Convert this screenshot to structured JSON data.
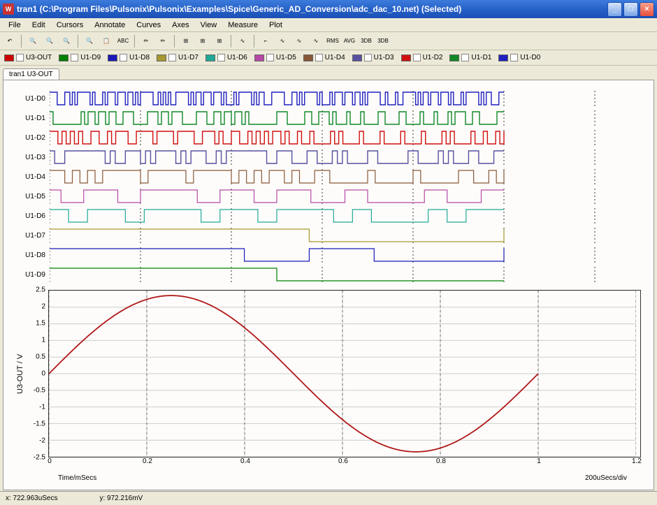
{
  "window": {
    "title": "tran1 (C:\\Program Files\\Pulsonix\\Pulsonix\\Examples\\Spice\\Generic_AD_Conversion\\adc_dac_10.net) (Selected)",
    "icon_glyph": "W"
  },
  "menu": [
    "File",
    "Edit",
    "Cursors",
    "Annotate",
    "Curves",
    "Axes",
    "View",
    "Measure",
    "Plot"
  ],
  "toolbar_icons": [
    "↶",
    "|",
    "🔍",
    "🔍",
    "🔍",
    "|",
    "🔍",
    "📋",
    "ABC",
    "|",
    "✏",
    "✏",
    "|",
    "⊞",
    "⊞",
    "⊞",
    "|",
    "∿",
    "|",
    "⌐",
    "∿",
    "∿",
    "∿",
    "RMS",
    "AVG",
    "3DB",
    "3DB"
  ],
  "legend": [
    {
      "label": "U3-OUT",
      "color": "#cc0000"
    },
    {
      "label": "U1-D9",
      "color": "#008000"
    },
    {
      "label": "U1-D8",
      "color": "#1a18b9"
    },
    {
      "label": "U1-D7",
      "color": "#a89830"
    },
    {
      "label": "U1-D6",
      "color": "#20a898"
    },
    {
      "label": "U1-D5",
      "color": "#b848a8"
    },
    {
      "label": "U1-D4",
      "color": "#885838"
    },
    {
      "label": "U1-D3",
      "color": "#5850a0"
    },
    {
      "label": "U1-D2",
      "color": "#d01010"
    },
    {
      "label": "U1-D1",
      "color": "#108828"
    },
    {
      "label": "U1-D0",
      "color": "#2020c0"
    }
  ],
  "tab": "tran1 U3-OUT",
  "digital_signals": [
    {
      "name": "U1-D0",
      "color": "#2020c0",
      "density": 180
    },
    {
      "name": "U1-D1",
      "color": "#108828",
      "density": 130
    },
    {
      "name": "U1-D2",
      "color": "#d01010",
      "density": 110
    },
    {
      "name": "U1-D3",
      "color": "#5850a0",
      "density": 90
    },
    {
      "name": "U1-D4",
      "color": "#885838",
      "density": 60
    },
    {
      "name": "U1-D5",
      "color": "#b848a8",
      "density": 40
    },
    {
      "name": "U1-D6",
      "color": "#20a898",
      "density": 24
    },
    {
      "name": "U1-D7",
      "color": "#a89830",
      "density": 14
    },
    {
      "name": "U1-D8",
      "color": "#1a18b9",
      "density": 7
    },
    {
      "name": "U1-D9",
      "color": "#008000",
      "density": 1
    }
  ],
  "analog": {
    "ylabel": "U3-OUT / V",
    "yticks": [
      "2.5",
      "2",
      "1.5",
      "1",
      "0.5",
      "0",
      "-0.5",
      "-1",
      "-1.5",
      "-2",
      "-2.5"
    ],
    "ylim": [
      -2.5,
      2.5
    ],
    "color": "#b01818",
    "amplitude": 2.35,
    "period_ms": 1.0
  },
  "xaxis": {
    "ticks": [
      "0",
      "0.2",
      "0.4",
      "0.6",
      "0.8",
      "1",
      "1.2"
    ],
    "xlim": [
      0,
      1.2
    ],
    "label": "Time/mSecs",
    "scale": "200uSecs/div"
  },
  "status": {
    "x": "x: 722.963uSecs",
    "y": "y: 972.216mV"
  },
  "style": {
    "bg": "#ece9d8",
    "plot_bg": "#fdfcfa",
    "grid_color": "#cccccc",
    "grid_dash_color": "#666666"
  }
}
